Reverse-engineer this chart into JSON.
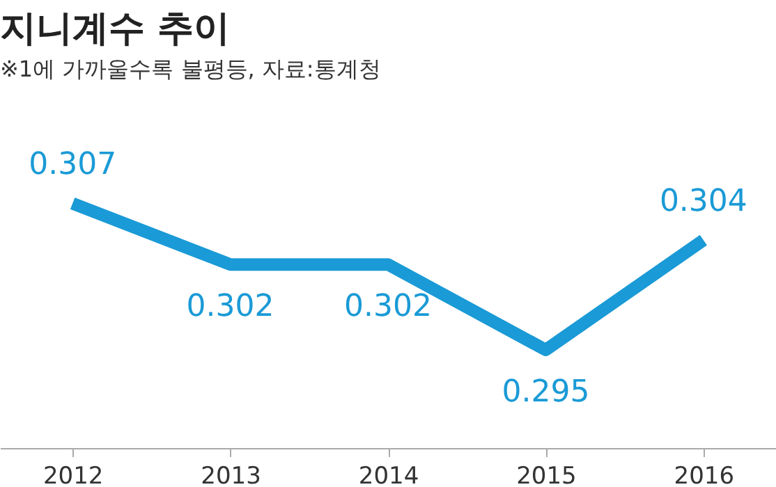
{
  "chart_data": {
    "type": "line",
    "title": "지니계수 추이",
    "subtitle": "※1에 가까울수록 불평등, 자료:통계청",
    "categories": [
      "2012",
      "2013",
      "2014",
      "2015",
      "2016"
    ],
    "series": [
      {
        "color": "#1a9ad6",
        "values": [
          0.307,
          0.302,
          0.302,
          0.295,
          0.304
        ]
      }
    ],
    "data_labels": true,
    "line_style": "solid"
  }
}
